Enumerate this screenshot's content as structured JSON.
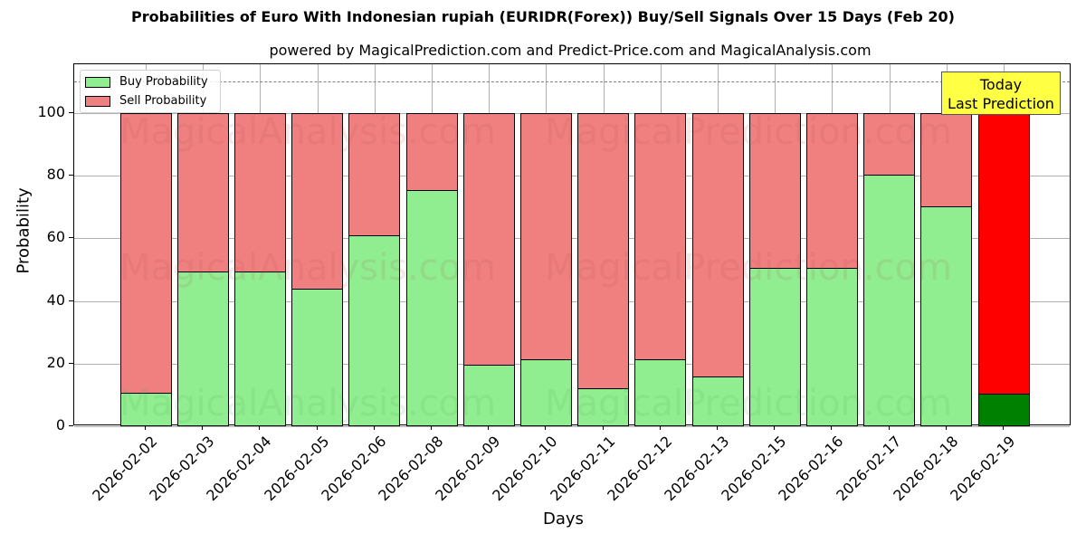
{
  "title": "Probabilities of Euro With Indonesian rupiah (EURIDR(Forex)) Buy/Sell Signals Over 15 Days (Feb 20)",
  "subtitle": "powered by MagicalPrediction.com and Predict-Price.com and MagicalAnalysis.com",
  "legend": {
    "buy_label": "Buy Probability",
    "sell_label": "Sell Probability"
  },
  "annotation": {
    "line1": "Today",
    "line2": "Last Prediction"
  },
  "watermarks": [
    "MagicalAnalysis.com",
    "MagicalPrediction.com"
  ],
  "colors": {
    "buy": "#90ee90",
    "sell": "#f08080",
    "today_buy": "#008000",
    "today_sell": "#ff0000",
    "annotation_bg": "#ffff44"
  },
  "chart_data": {
    "type": "bar",
    "stacked": true,
    "title": "Probabilities of Euro With Indonesian rupiah (EURIDR(Forex)) Buy/Sell Signals Over 15 Days (Feb 20)",
    "subtitle": "powered by MagicalPrediction.com and Predict-Price.com and MagicalAnalysis.com",
    "xlabel": "Days",
    "ylabel": "Probability",
    "ylim": [
      0,
      115
    ],
    "yticks": [
      0,
      20,
      40,
      60,
      80,
      100
    ],
    "grid": true,
    "legend_position": "upper left",
    "reference_line": {
      "y": 110,
      "style": "dashed",
      "color": "#808080"
    },
    "categories": [
      "2026-02-02",
      "2026-02-03",
      "2026-02-04",
      "2026-02-05",
      "2026-02-06",
      "2026-02-08",
      "2026-02-09",
      "2026-02-10",
      "2026-02-11",
      "2026-02-12",
      "2026-02-13",
      "2026-02-15",
      "2026-02-16",
      "2026-02-17",
      "2026-02-18",
      "2026-02-19"
    ],
    "series": [
      {
        "name": "Buy Probability",
        "values": [
          10.7,
          49.4,
          49.4,
          43.9,
          61.0,
          75.4,
          19.7,
          21.5,
          12.0,
          21.5,
          15.9,
          50.6,
          50.6,
          80.3,
          70.1,
          10.5
        ]
      },
      {
        "name": "Sell Probability",
        "values": [
          89.3,
          50.6,
          50.6,
          56.1,
          39.0,
          24.6,
          80.3,
          78.5,
          88.0,
          78.5,
          84.1,
          49.4,
          49.4,
          19.7,
          29.9,
          89.5
        ]
      }
    ],
    "highlighted_category": "2026-02-19",
    "annotations": [
      "Today\nLast Prediction"
    ]
  }
}
